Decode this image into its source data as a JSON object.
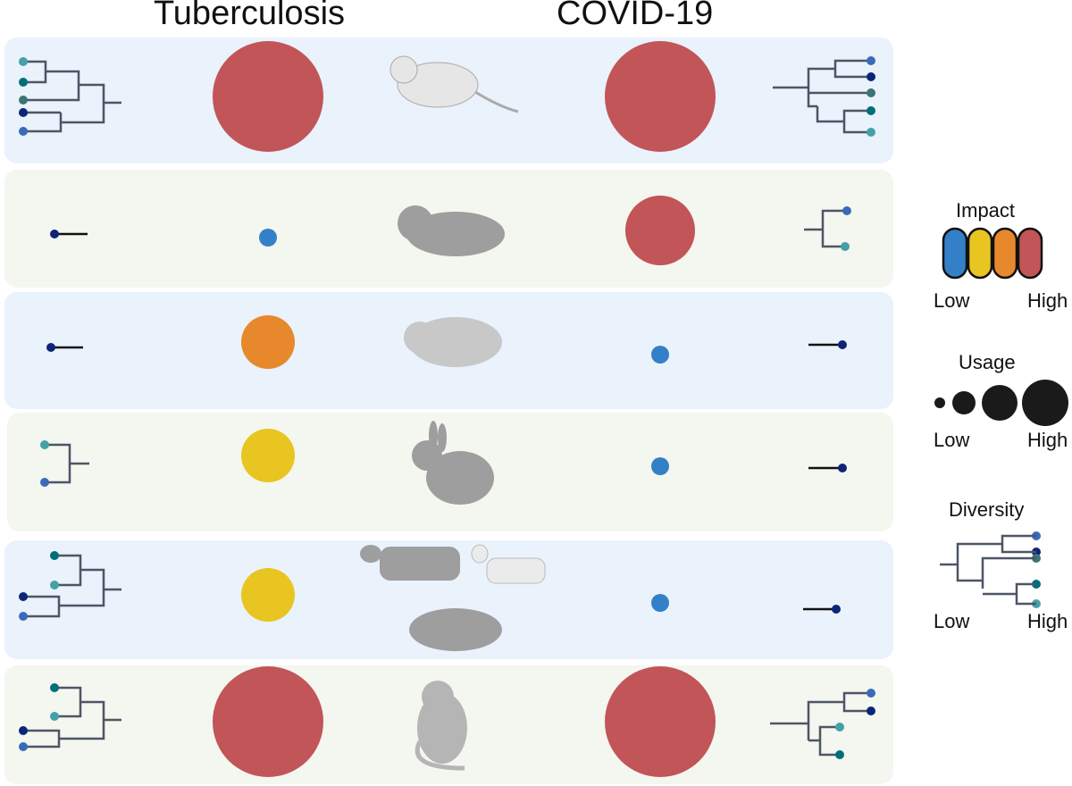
{
  "headers": {
    "left": "Tuberculosis",
    "right": "COVID-19"
  },
  "colors": {
    "impact_low": "#3480c8",
    "impact_mid_low": "#e8c520",
    "impact_mid_high": "#e8882c",
    "impact_high": "#c25557",
    "row_blue": "#eaf2fc",
    "row_green": "#f3f7ef",
    "tree_line": "#4d5566"
  },
  "rows": [
    {
      "animal": "mouse",
      "tuberculosis": {
        "impact": 4,
        "usage": 4
      },
      "covid": {
        "impact": 4,
        "usage": 4
      }
    },
    {
      "animal": "hamster",
      "tuberculosis": {
        "impact": 1,
        "usage": 1
      },
      "covid": {
        "impact": 4,
        "usage": 3
      }
    },
    {
      "animal": "guinea-pig",
      "tuberculosis": {
        "impact": 3,
        "usage": 2
      },
      "covid": {
        "impact": 1,
        "usage": 1
      }
    },
    {
      "animal": "rabbit",
      "tuberculosis": {
        "impact": 2,
        "usage": 2
      },
      "covid": {
        "impact": 1,
        "usage": 1
      }
    },
    {
      "animal": "livestock (cow, goat, pig)",
      "tuberculosis": {
        "impact": 2,
        "usage": 2
      },
      "covid": {
        "impact": 1,
        "usage": 1
      }
    },
    {
      "animal": "monkey",
      "tuberculosis": {
        "impact": 4,
        "usage": 4
      },
      "covid": {
        "impact": 4,
        "usage": 4
      }
    }
  ],
  "legend": {
    "impact": {
      "title": "Impact",
      "low": "Low",
      "high": "High"
    },
    "usage": {
      "title": "Usage",
      "low": "Low",
      "high": "High"
    },
    "diversity": {
      "title": "Diversity",
      "low": "Low",
      "high": "High"
    }
  }
}
